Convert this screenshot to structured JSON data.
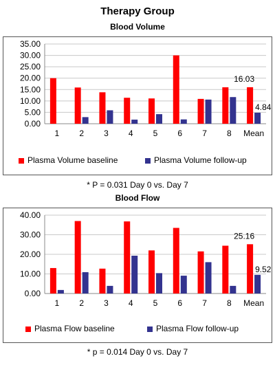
{
  "header": {
    "title": "Therapy Group"
  },
  "chart_data": [
    {
      "type": "bar",
      "title": "Blood Volume",
      "categories": [
        "1",
        "2",
        "3",
        "4",
        "5",
        "6",
        "7",
        "8",
        "Mean"
      ],
      "series": [
        {
          "name": "Plasma Volume baseline",
          "color": "#ff0000",
          "values": [
            20.0,
            15.9,
            13.8,
            11.4,
            11.1,
            30.0,
            10.9,
            16.0,
            16.03
          ]
        },
        {
          "name": "Plasma Volume follow-up",
          "color": "#33338f",
          "values": [
            0.0,
            2.9,
            5.9,
            1.8,
            4.2,
            1.9,
            10.6,
            11.7,
            4.84
          ]
        }
      ],
      "ylim": [
        0,
        35
      ],
      "yticks": [
        "0.00",
        "5.00",
        "10.00",
        "15.00",
        "20.00",
        "25.00",
        "30.00",
        "35.00"
      ],
      "data_labels": [
        "16.03",
        "4.84"
      ],
      "grid": true,
      "legend": "bottom",
      "note": "* P = 0.031 Day 0 vs. Day 7"
    },
    {
      "type": "bar",
      "title": "Blood Flow",
      "categories": [
        "1",
        "2",
        "3",
        "4",
        "5",
        "6",
        "7",
        "8",
        "Mean"
      ],
      "series": [
        {
          "name": "Plasma Flow baseline",
          "color": "#ff0000",
          "values": [
            13.0,
            37.0,
            12.7,
            36.8,
            22.0,
            33.5,
            21.5,
            24.4,
            25.16
          ]
        },
        {
          "name": "Plasma Flow follow-up",
          "color": "#33338f",
          "values": [
            1.8,
            10.9,
            3.9,
            19.3,
            10.4,
            9.1,
            16.0,
            3.9,
            9.52
          ]
        }
      ],
      "ylim": [
        0,
        40
      ],
      "yticks": [
        "0.00",
        "10.00",
        "20.00",
        "30.00",
        "40.00"
      ],
      "data_labels": [
        "25.16",
        "9.52"
      ],
      "grid": true,
      "legend": "bottom",
      "note": "* p = 0.014 Day 0 vs. Day 7"
    }
  ]
}
